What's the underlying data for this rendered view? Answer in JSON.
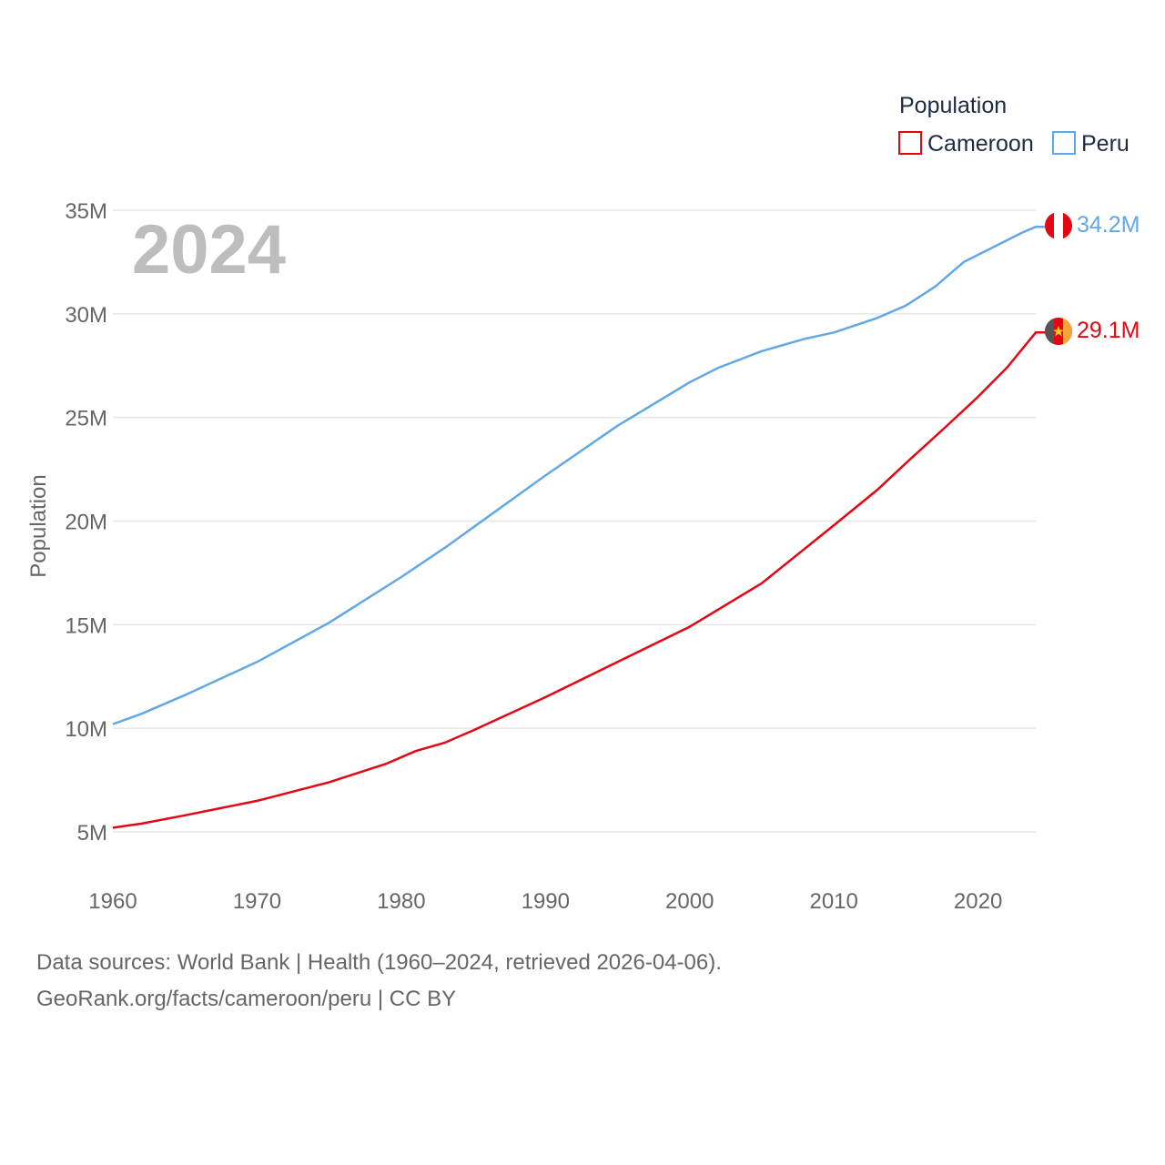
{
  "colors": {
    "cameroon": "#e30613",
    "peru": "#62a8e5",
    "grid": "#e6e6e6",
    "axis_text": "#666666",
    "year": "#bdbdbd"
  },
  "legend": {
    "title": "Population",
    "items": [
      "Cameroon",
      "Peru"
    ]
  },
  "year_label": "2024",
  "end_labels": {
    "peru": "34.2M",
    "cameroon": "29.1M"
  },
  "footer": {
    "line1": "Data sources: World Bank | Health (1960–2024, retrieved 2026-04-06).",
    "line2": "GeoRank.org/facts/cameroon/peru | CC BY"
  },
  "chart_data": {
    "type": "line",
    "title": "",
    "xlabel": "",
    "ylabel": "Population",
    "xlim": [
      1960,
      2024
    ],
    "ylim": [
      3000000,
      35000000
    ],
    "x_ticks": [
      1960,
      1970,
      1980,
      1990,
      2000,
      2010,
      2020
    ],
    "x_tick_labels": [
      "1960",
      "1970",
      "1980",
      "1990",
      "2000",
      "2010",
      "2020"
    ],
    "y_ticks": [
      5000000,
      10000000,
      15000000,
      20000000,
      25000000,
      30000000,
      35000000
    ],
    "y_tick_labels": [
      "5M",
      "10M",
      "15M",
      "20M",
      "25M",
      "30M",
      "35M"
    ],
    "series": [
      {
        "name": "Peru",
        "color": "#62a8e5",
        "x": [
          1960,
          1962,
          1965,
          1970,
          1975,
          1980,
          1983,
          1985,
          1990,
          1995,
          2000,
          2002,
          2005,
          2008,
          2010,
          2013,
          2015,
          2017,
          2019,
          2021,
          2023,
          2024
        ],
        "values": [
          10200000,
          10700000,
          11600000,
          13200000,
          15100000,
          17300000,
          18700000,
          19700000,
          22200000,
          24600000,
          26700000,
          27400000,
          28200000,
          28800000,
          29100000,
          29800000,
          30400000,
          31300000,
          32500000,
          33200000,
          33900000,
          34200000
        ]
      },
      {
        "name": "Cameroon",
        "color": "#e30613",
        "x": [
          1960,
          1962,
          1965,
          1970,
          1975,
          1979,
          1981,
          1983,
          1985,
          1990,
          1995,
          2000,
          2005,
          2010,
          2013,
          2015,
          2018,
          2020,
          2022,
          2024
        ],
        "values": [
          5200000,
          5400000,
          5800000,
          6500000,
          7400000,
          8300000,
          8900000,
          9300000,
          9900000,
          11500000,
          13200000,
          14900000,
          17000000,
          19800000,
          21500000,
          22800000,
          24700000,
          26000000,
          27400000,
          29100000
        ]
      }
    ]
  }
}
